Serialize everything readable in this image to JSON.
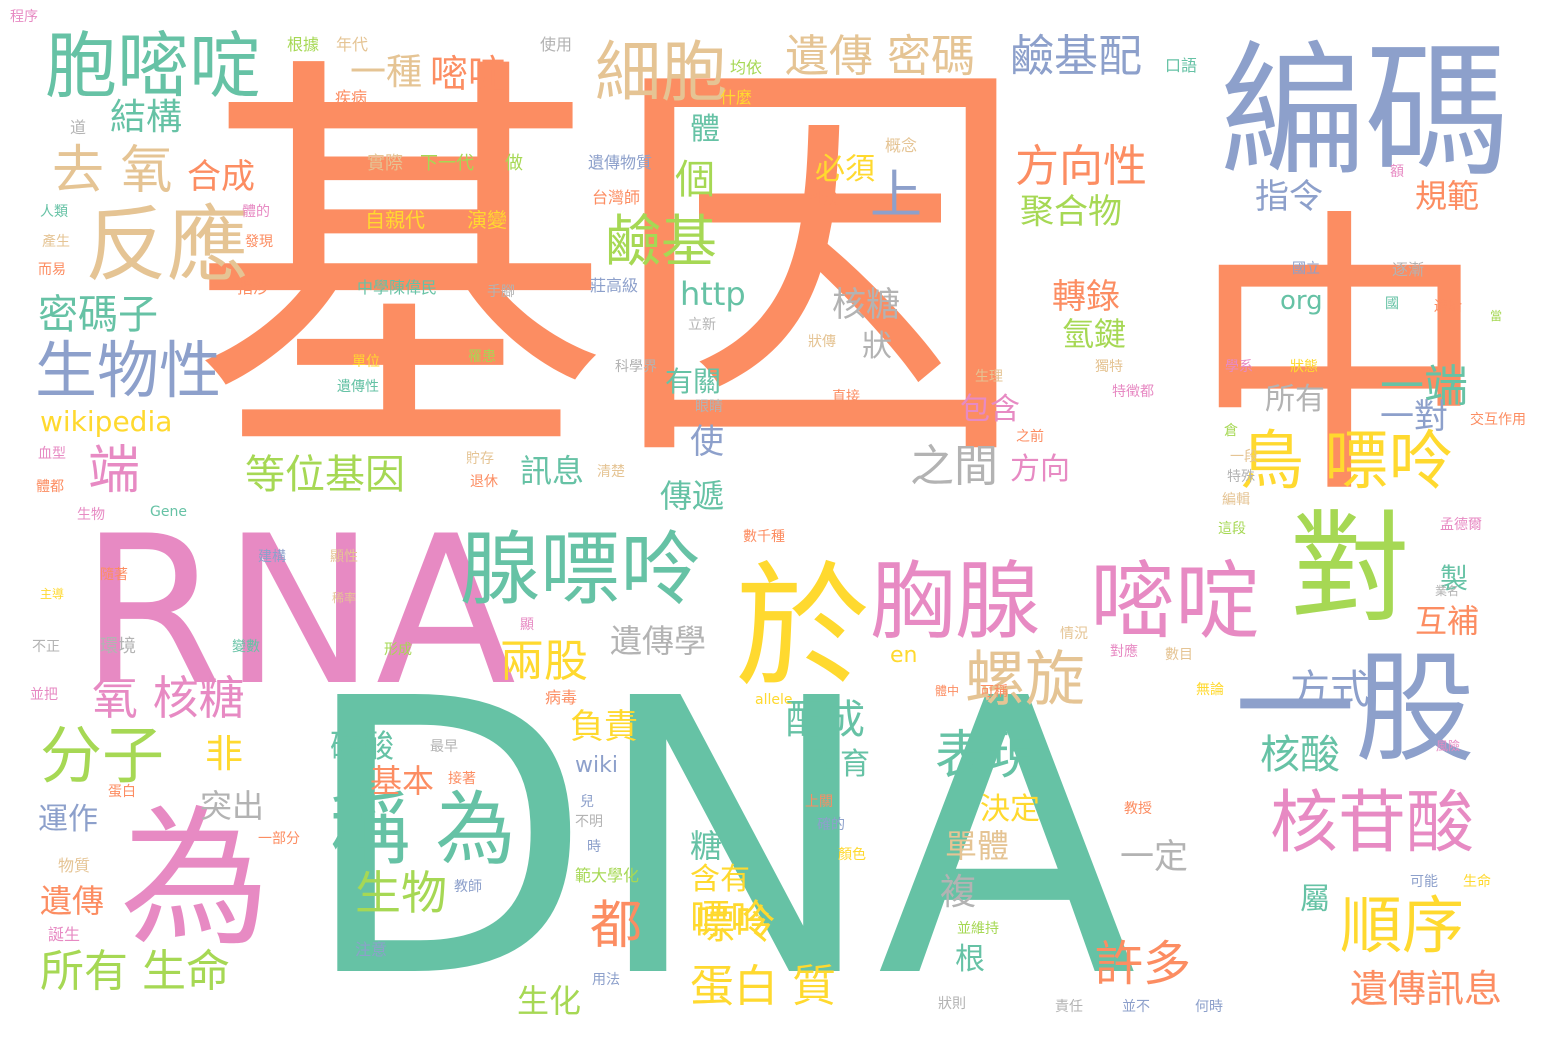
{
  "palette": {
    "orange": "#fc8d62",
    "green": "#66c2a5",
    "blue": "#8da0cb",
    "pink": "#e78ac3",
    "lime": "#a6d854",
    "yellow": "#ffd92f",
    "tan": "#e5c494",
    "gray": "#b3b3b3"
  },
  "words": [
    {
      "text": "基因",
      "color": "orange"
    },
    {
      "text": "DNA",
      "color": "green"
    },
    {
      "text": "中",
      "color": "orange"
    },
    {
      "text": "RNA",
      "color": "pink"
    },
    {
      "text": "編碼",
      "color": "blue"
    },
    {
      "text": "對",
      "color": "lime"
    },
    {
      "text": "一股",
      "color": "blue"
    },
    {
      "text": "於",
      "color": "yellow"
    },
    {
      "text": "為",
      "color": "pink"
    },
    {
      "text": "胞嘧啶",
      "color": "green"
    },
    {
      "text": "反應",
      "color": "tan"
    },
    {
      "text": "胸腺",
      "color": "pink"
    },
    {
      "text": "嘧啶",
      "color": "pink"
    },
    {
      "text": "腺嘌呤",
      "color": "green"
    },
    {
      "text": "核苷酸",
      "color": "pink"
    },
    {
      "text": "細胞",
      "color": "tan"
    },
    {
      "text": "鳥 嘌呤",
      "color": "yellow"
    },
    {
      "text": "稱 為",
      "color": "green"
    },
    {
      "text": "生物性",
      "color": "blue"
    },
    {
      "text": "分子",
      "color": "lime"
    },
    {
      "text": "順序",
      "color": "yellow"
    },
    {
      "text": "螺旋",
      "color": "tan"
    },
    {
      "text": "鹼基",
      "color": "lime"
    },
    {
      "text": "去 氧",
      "color": "tan"
    },
    {
      "text": "合成",
      "color": "orange"
    },
    {
      "text": "氧 核糖",
      "color": "pink"
    },
    {
      "text": "遺傳 密碼",
      "color": "tan"
    },
    {
      "text": "鹼基配",
      "color": "blue"
    },
    {
      "text": "方向性",
      "color": "orange"
    },
    {
      "text": "表現",
      "color": "green"
    },
    {
      "text": "許多",
      "color": "orange"
    },
    {
      "text": "密碼子",
      "color": "green"
    },
    {
      "text": "所有 生命",
      "color": "lime"
    },
    {
      "text": "生物",
      "color": "lime"
    },
    {
      "text": "兩股",
      "color": "yellow"
    },
    {
      "text": "上",
      "color": "blue"
    },
    {
      "text": "一端",
      "color": "green"
    },
    {
      "text": "都",
      "color": "orange"
    },
    {
      "text": "等位基因",
      "color": "lime"
    },
    {
      "text": "端",
      "color": "pink"
    },
    {
      "text": "遺傳學",
      "color": "gray"
    },
    {
      "text": "核酸",
      "color": "green"
    },
    {
      "text": "方式",
      "color": "blue"
    },
    {
      "text": "配成",
      "color": "green"
    },
    {
      "text": "嘌呤",
      "color": "yellow"
    },
    {
      "text": "蛋白 質",
      "color": "yellow"
    },
    {
      "text": "遺傳訊息",
      "color": "orange"
    },
    {
      "text": "之間",
      "color": "gray"
    },
    {
      "text": "結構",
      "color": "green"
    },
    {
      "text": "一種",
      "color": "tan"
    },
    {
      "text": "嘧啶",
      "color": "orange"
    },
    {
      "text": "個",
      "color": "lime"
    },
    {
      "text": "體",
      "color": "green"
    },
    {
      "text": "必須",
      "color": "yellow"
    },
    {
      "text": "聚合物",
      "color": "lime"
    },
    {
      "text": "指令",
      "color": "blue"
    },
    {
      "text": "規範",
      "color": "orange"
    },
    {
      "text": "http",
      "color": "green"
    },
    {
      "text": "核糖",
      "color": "gray"
    },
    {
      "text": "轉錄",
      "color": "orange"
    },
    {
      "text": "氫鍵",
      "color": "lime"
    },
    {
      "text": "狀",
      "color": "gray"
    },
    {
      "text": "org",
      "color": "green"
    },
    {
      "text": "有關",
      "color": "green"
    },
    {
      "text": "包含",
      "color": "pink"
    },
    {
      "text": "方向",
      "color": "pink"
    },
    {
      "text": "所有",
      "color": "gray"
    },
    {
      "text": "一對",
      "color": "blue"
    },
    {
      "text": "使",
      "color": "blue"
    },
    {
      "text": "訊息",
      "color": "green"
    },
    {
      "text": "傳遞",
      "color": "green"
    },
    {
      "text": "wikipedia",
      "color": "yellow"
    },
    {
      "text": "製",
      "color": "green"
    },
    {
      "text": "互補",
      "color": "orange"
    },
    {
      "text": "en",
      "color": "yellow"
    },
    {
      "text": "負責",
      "color": "yellow"
    },
    {
      "text": "非",
      "color": "yellow"
    },
    {
      "text": "突出",
      "color": "gray"
    },
    {
      "text": "磷酸",
      "color": "green"
    },
    {
      "text": "基本",
      "color": "orange"
    },
    {
      "text": "wiki",
      "color": "blue"
    },
    {
      "text": "發育",
      "color": "green"
    },
    {
      "text": "決定",
      "color": "yellow"
    },
    {
      "text": "運作",
      "color": "blue"
    },
    {
      "text": "單體",
      "color": "tan"
    },
    {
      "text": "一定",
      "color": "gray"
    },
    {
      "text": "複",
      "color": "gray"
    },
    {
      "text": "糖",
      "color": "green"
    },
    {
      "text": "含有",
      "color": "yellow"
    },
    {
      "text": "遺傳",
      "color": "orange"
    },
    {
      "text": "根",
      "color": "green"
    },
    {
      "text": "屬",
      "color": "green"
    },
    {
      "text": "生化",
      "color": "lime"
    },
    {
      "text": "嘌呤",
      "color": "yellow"
    },
    {
      "text": "根據",
      "color": "lime"
    },
    {
      "text": "年代",
      "color": "tan"
    },
    {
      "text": "使用",
      "color": "gray"
    },
    {
      "text": "均依",
      "color": "lime"
    },
    {
      "text": "口語",
      "color": "green"
    },
    {
      "text": "疾病",
      "color": "orange"
    },
    {
      "text": "什麼",
      "color": "yellow"
    },
    {
      "text": "道",
      "color": "gray"
    },
    {
      "text": "概念",
      "color": "tan"
    },
    {
      "text": "實際",
      "color": "tan"
    },
    {
      "text": "下一代",
      "color": "lime"
    },
    {
      "text": "做",
      "color": "lime"
    },
    {
      "text": "遺傳物質",
      "color": "blue"
    },
    {
      "text": "台灣師",
      "color": "orange"
    },
    {
      "text": "性狀",
      "color": "orange"
    },
    {
      "text": "額",
      "color": "pink"
    },
    {
      "text": "人類",
      "color": "green"
    },
    {
      "text": "體的",
      "color": "pink"
    },
    {
      "text": "自親代",
      "color": "yellow"
    },
    {
      "text": "演變",
      "color": "yellow"
    },
    {
      "text": "產生",
      "color": "tan"
    },
    {
      "text": "發現",
      "color": "orange"
    },
    {
      "text": "國立",
      "color": "blue"
    },
    {
      "text": "逐漸",
      "color": "gray"
    },
    {
      "text": "而易",
      "color": "orange"
    },
    {
      "text": "指涉",
      "color": "orange"
    },
    {
      "text": "中學陳偉民",
      "color": "green"
    },
    {
      "text": "手腳",
      "color": "gray"
    },
    {
      "text": "莊高級",
      "color": "blue"
    },
    {
      "text": "國",
      "color": "green"
    },
    {
      "text": "遞給",
      "color": "orange"
    },
    {
      "text": "當",
      "color": "lime"
    },
    {
      "text": "立新",
      "color": "gray"
    },
    {
      "text": "狀傳",
      "color": "tan"
    },
    {
      "text": "單位",
      "color": "yellow"
    },
    {
      "text": "罹患",
      "color": "lime"
    },
    {
      "text": "遺傳性",
      "color": "green"
    },
    {
      "text": "科學界",
      "color": "gray"
    },
    {
      "text": "眼睛",
      "color": "gray"
    },
    {
      "text": "獨特",
      "color": "tan"
    },
    {
      "text": "學系",
      "color": "pink"
    },
    {
      "text": "狀態",
      "color": "yellow"
    },
    {
      "text": "特徵都",
      "color": "pink"
    },
    {
      "text": "生理",
      "color": "tan"
    },
    {
      "text": "直接",
      "color": "orange"
    },
    {
      "text": "倉",
      "color": "lime"
    },
    {
      "text": "交互作用",
      "color": "orange"
    },
    {
      "text": "之前",
      "color": "orange"
    },
    {
      "text": "血型",
      "color": "pink"
    },
    {
      "text": "貯存",
      "color": "tan"
    },
    {
      "text": "一段",
      "color": "tan"
    },
    {
      "text": "體都",
      "color": "orange"
    },
    {
      "text": "退休",
      "color": "orange"
    },
    {
      "text": "清楚",
      "color": "tan"
    },
    {
      "text": "特殊",
      "color": "gray"
    },
    {
      "text": "生物",
      "color": "pink"
    },
    {
      "text": "Gene",
      "color": "green"
    },
    {
      "text": "編輯",
      "color": "tan"
    },
    {
      "text": "這段",
      "color": "lime"
    },
    {
      "text": "孟德爾",
      "color": "pink"
    },
    {
      "text": "數千種",
      "color": "orange"
    },
    {
      "text": "建構",
      "color": "blue"
    },
    {
      "text": "顯性",
      "color": "tan"
    },
    {
      "text": "隨著",
      "color": "orange"
    },
    {
      "text": "業名",
      "color": "gray"
    },
    {
      "text": "主導",
      "color": "yellow"
    },
    {
      "text": "稀率",
      "color": "tan"
    },
    {
      "text": "顯",
      "color": "pink"
    },
    {
      "text": "情況",
      "color": "tan"
    },
    {
      "text": "不正",
      "color": "gray"
    },
    {
      "text": "環境",
      "color": "gray"
    },
    {
      "text": "變數",
      "color": "green"
    },
    {
      "text": "形成",
      "color": "lime"
    },
    {
      "text": "對應",
      "color": "pink"
    },
    {
      "text": "數目",
      "color": "tan"
    },
    {
      "text": "並把",
      "color": "pink"
    },
    {
      "text": "病毒",
      "color": "orange"
    },
    {
      "text": "allele",
      "color": "yellow"
    },
    {
      "text": "體中",
      "color": "orange"
    },
    {
      "text": "可稱",
      "color": "orange"
    },
    {
      "text": "無論",
      "color": "yellow"
    },
    {
      "text": "最早",
      "color": "gray"
    },
    {
      "text": "接著",
      "color": "orange"
    },
    {
      "text": "風險",
      "color": "pink"
    },
    {
      "text": "蛋白",
      "color": "orange"
    },
    {
      "text": "兒",
      "color": "blue"
    },
    {
      "text": "上關",
      "color": "orange"
    },
    {
      "text": "教授",
      "color": "orange"
    },
    {
      "text": "不明",
      "color": "gray"
    },
    {
      "text": "確的",
      "color": "blue"
    },
    {
      "text": "一部分",
      "color": "orange"
    },
    {
      "text": "時",
      "color": "blue"
    },
    {
      "text": "顏色",
      "color": "yellow"
    },
    {
      "text": "物質",
      "color": "tan"
    },
    {
      "text": "範大學化",
      "color": "lime"
    },
    {
      "text": "教師",
      "color": "blue"
    },
    {
      "text": "可能",
      "color": "blue"
    },
    {
      "text": "生命",
      "color": "yellow"
    },
    {
      "text": "誕生",
      "color": "pink"
    },
    {
      "text": "並維持",
      "color": "lime"
    },
    {
      "text": "注意",
      "color": "blue"
    },
    {
      "text": "用法",
      "color": "blue"
    },
    {
      "text": "狀則",
      "color": "gray"
    },
    {
      "text": "責任",
      "color": "gray"
    },
    {
      "text": "並不",
      "color": "blue"
    },
    {
      "text": "何時",
      "color": "blue"
    },
    {
      "text": "程序",
      "color": "pink"
    }
  ]
}
